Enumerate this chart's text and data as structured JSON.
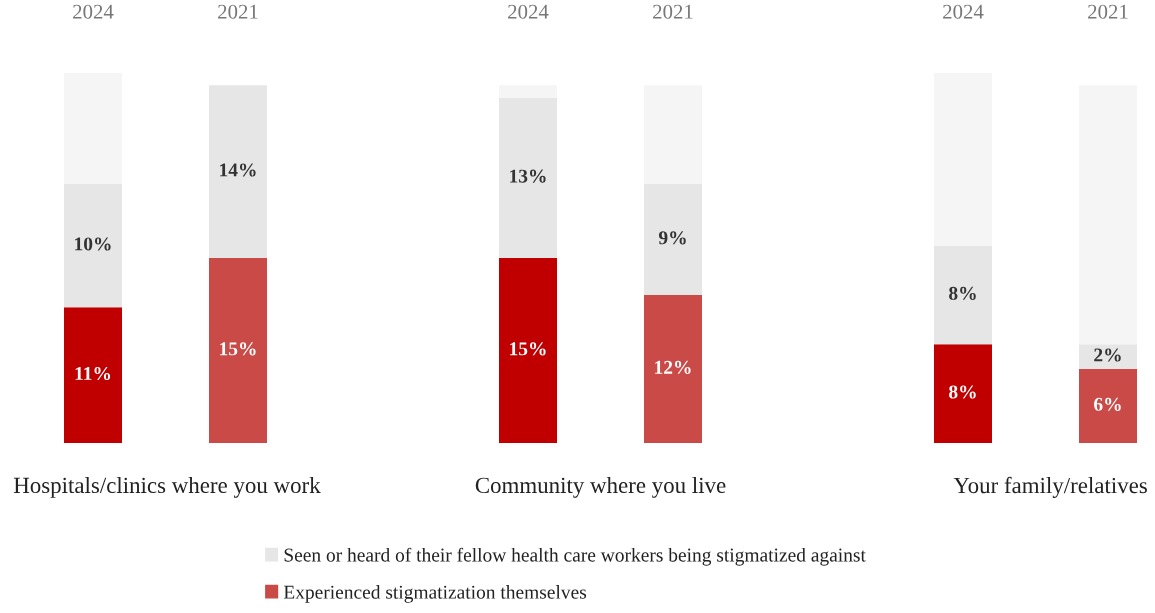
{
  "chart_data": {
    "type": "bar",
    "stacked": true,
    "categories": [
      "2024",
      "2021",
      null,
      "2024",
      "2021",
      null,
      "2024",
      "2021"
    ],
    "series": [
      {
        "name": "Experienced stigmatization themselves",
        "color": "#c94a46",
        "colors": [
          "#c00000",
          "#c94a46",
          null,
          "#c00000",
          "#c94a46",
          null,
          "#c00000",
          "#c94a46"
        ],
        "values": [
          11,
          15,
          null,
          15,
          12,
          null,
          8,
          6
        ],
        "value_labels": [
          "11%",
          "15%",
          null,
          "15%",
          "12%",
          null,
          "8%",
          "6%"
        ]
      },
      {
        "name": "Seen or heard of their fellow health care workers being stigmatized against",
        "color": "#e6e6e6",
        "values": [
          10,
          14,
          null,
          13,
          9,
          null,
          8,
          2
        ],
        "value_labels": [
          "10%",
          "14%",
          null,
          "13%",
          "9%",
          null,
          "8%",
          "2%"
        ]
      },
      {
        "color": "#f5f5f5",
        "values": [
          9,
          0,
          null,
          1,
          8,
          null,
          14,
          21
        ]
      }
    ],
    "annotations": [
      "Hospitals/clinics where you work",
      "Community where you live",
      "Your family/relatives"
    ],
    "legend": "bottom",
    "grid": false
  }
}
